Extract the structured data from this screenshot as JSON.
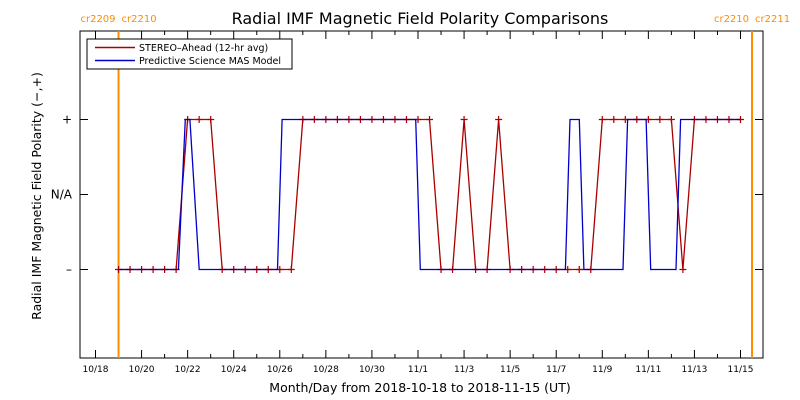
{
  "chart_data": {
    "type": "line",
    "title": "Radial IMF Magnetic Field Polarity Comparisons",
    "xlabel": "Month/Day from 2018-10-18 to 2018-11-15 (UT)",
    "ylabel": "Radial IMF Magnetic Field Polarity (−,+)",
    "x_unit": "days since 2018-10-18 00:00 UT",
    "xlim": [
      0,
      28
    ],
    "ylim": [
      -1.7,
      1.7
    ],
    "x_ticks": [
      {
        "x": 0,
        "label": "10/18"
      },
      {
        "x": 2,
        "label": "10/20"
      },
      {
        "x": 4,
        "label": "10/22"
      },
      {
        "x": 6,
        "label": "10/24"
      },
      {
        "x": 8,
        "label": "10/26"
      },
      {
        "x": 10,
        "label": "10/28"
      },
      {
        "x": 12,
        "label": "10/30"
      },
      {
        "x": 14,
        "label": "11/1"
      },
      {
        "x": 16,
        "label": "11/3"
      },
      {
        "x": 18,
        "label": "11/5"
      },
      {
        "x": 20,
        "label": "11/7"
      },
      {
        "x": 22,
        "label": "11/9"
      },
      {
        "x": 24,
        "label": "11/11"
      },
      {
        "x": 26,
        "label": "11/13"
      },
      {
        "x": 28,
        "label": "11/15"
      }
    ],
    "y_ticks": [
      {
        "y": 1,
        "label": "+"
      },
      {
        "y": 0,
        "label": "N/A"
      },
      {
        "y": -1,
        "label": "–"
      }
    ],
    "carrington_markers": [
      {
        "x": 1.0,
        "left_label": "cr2209",
        "right_label": "cr2210",
        "color": "#ff8c00"
      },
      {
        "x": 28.5,
        "left_label": "cr2210",
        "right_label": "cr2211",
        "color": "#ff8c00"
      }
    ],
    "series": [
      {
        "name": "STEREO–Ahead (12-hr avg)",
        "color": "#aa0000",
        "marker": "plus",
        "x": [
          1.0,
          1.5,
          2.0,
          2.5,
          3.0,
          3.5,
          4.0,
          4.5,
          5.0,
          5.5,
          6.0,
          6.5,
          7.0,
          7.5,
          8.0,
          8.5,
          9.0,
          9.5,
          10.0,
          10.5,
          11.0,
          11.5,
          12.0,
          12.5,
          13.0,
          13.5,
          14.0,
          14.5,
          15.0,
          15.5,
          16.0,
          16.5,
          17.0,
          17.5,
          18.0,
          18.5,
          19.0,
          19.5,
          20.0,
          20.5,
          21.0,
          21.5,
          22.0,
          22.5,
          23.0,
          23.5,
          24.0,
          24.5,
          25.0,
          25.5,
          26.0,
          26.5,
          27.0,
          27.5,
          28.0
        ],
        "y": [
          -1,
          -1,
          -1,
          -1,
          -1,
          -1,
          1,
          1,
          1,
          -1,
          -1,
          -1,
          -1,
          -1,
          -1,
          -1,
          1,
          1,
          1,
          1,
          1,
          1,
          1,
          1,
          1,
          1,
          1,
          1,
          -1,
          -1,
          1,
          -1,
          -1,
          1,
          -1,
          -1,
          -1,
          -1,
          -1,
          -1,
          -1,
          -1,
          1,
          1,
          1,
          1,
          1,
          1,
          1,
          -1,
          1,
          1,
          1,
          1,
          1
        ]
      },
      {
        "name": "Predictive Science MAS Model",
        "color": "#0000cc",
        "x": [
          1.0,
          3.6,
          3.9,
          4.1,
          4.5,
          7.9,
          8.1,
          13.9,
          14.1,
          15.3,
          15.5,
          20.4,
          20.6,
          21.0,
          21.2,
          22.9,
          23.1,
          23.9,
          24.1,
          25.2,
          25.4,
          28.0
        ],
        "y": [
          -1,
          -1,
          1,
          1,
          -1,
          -1,
          1,
          1,
          -1,
          -1,
          -1,
          -1,
          1,
          1,
          -1,
          -1,
          1,
          1,
          -1,
          -1,
          1,
          1
        ]
      }
    ],
    "legend": {
      "position": "top-left"
    }
  }
}
